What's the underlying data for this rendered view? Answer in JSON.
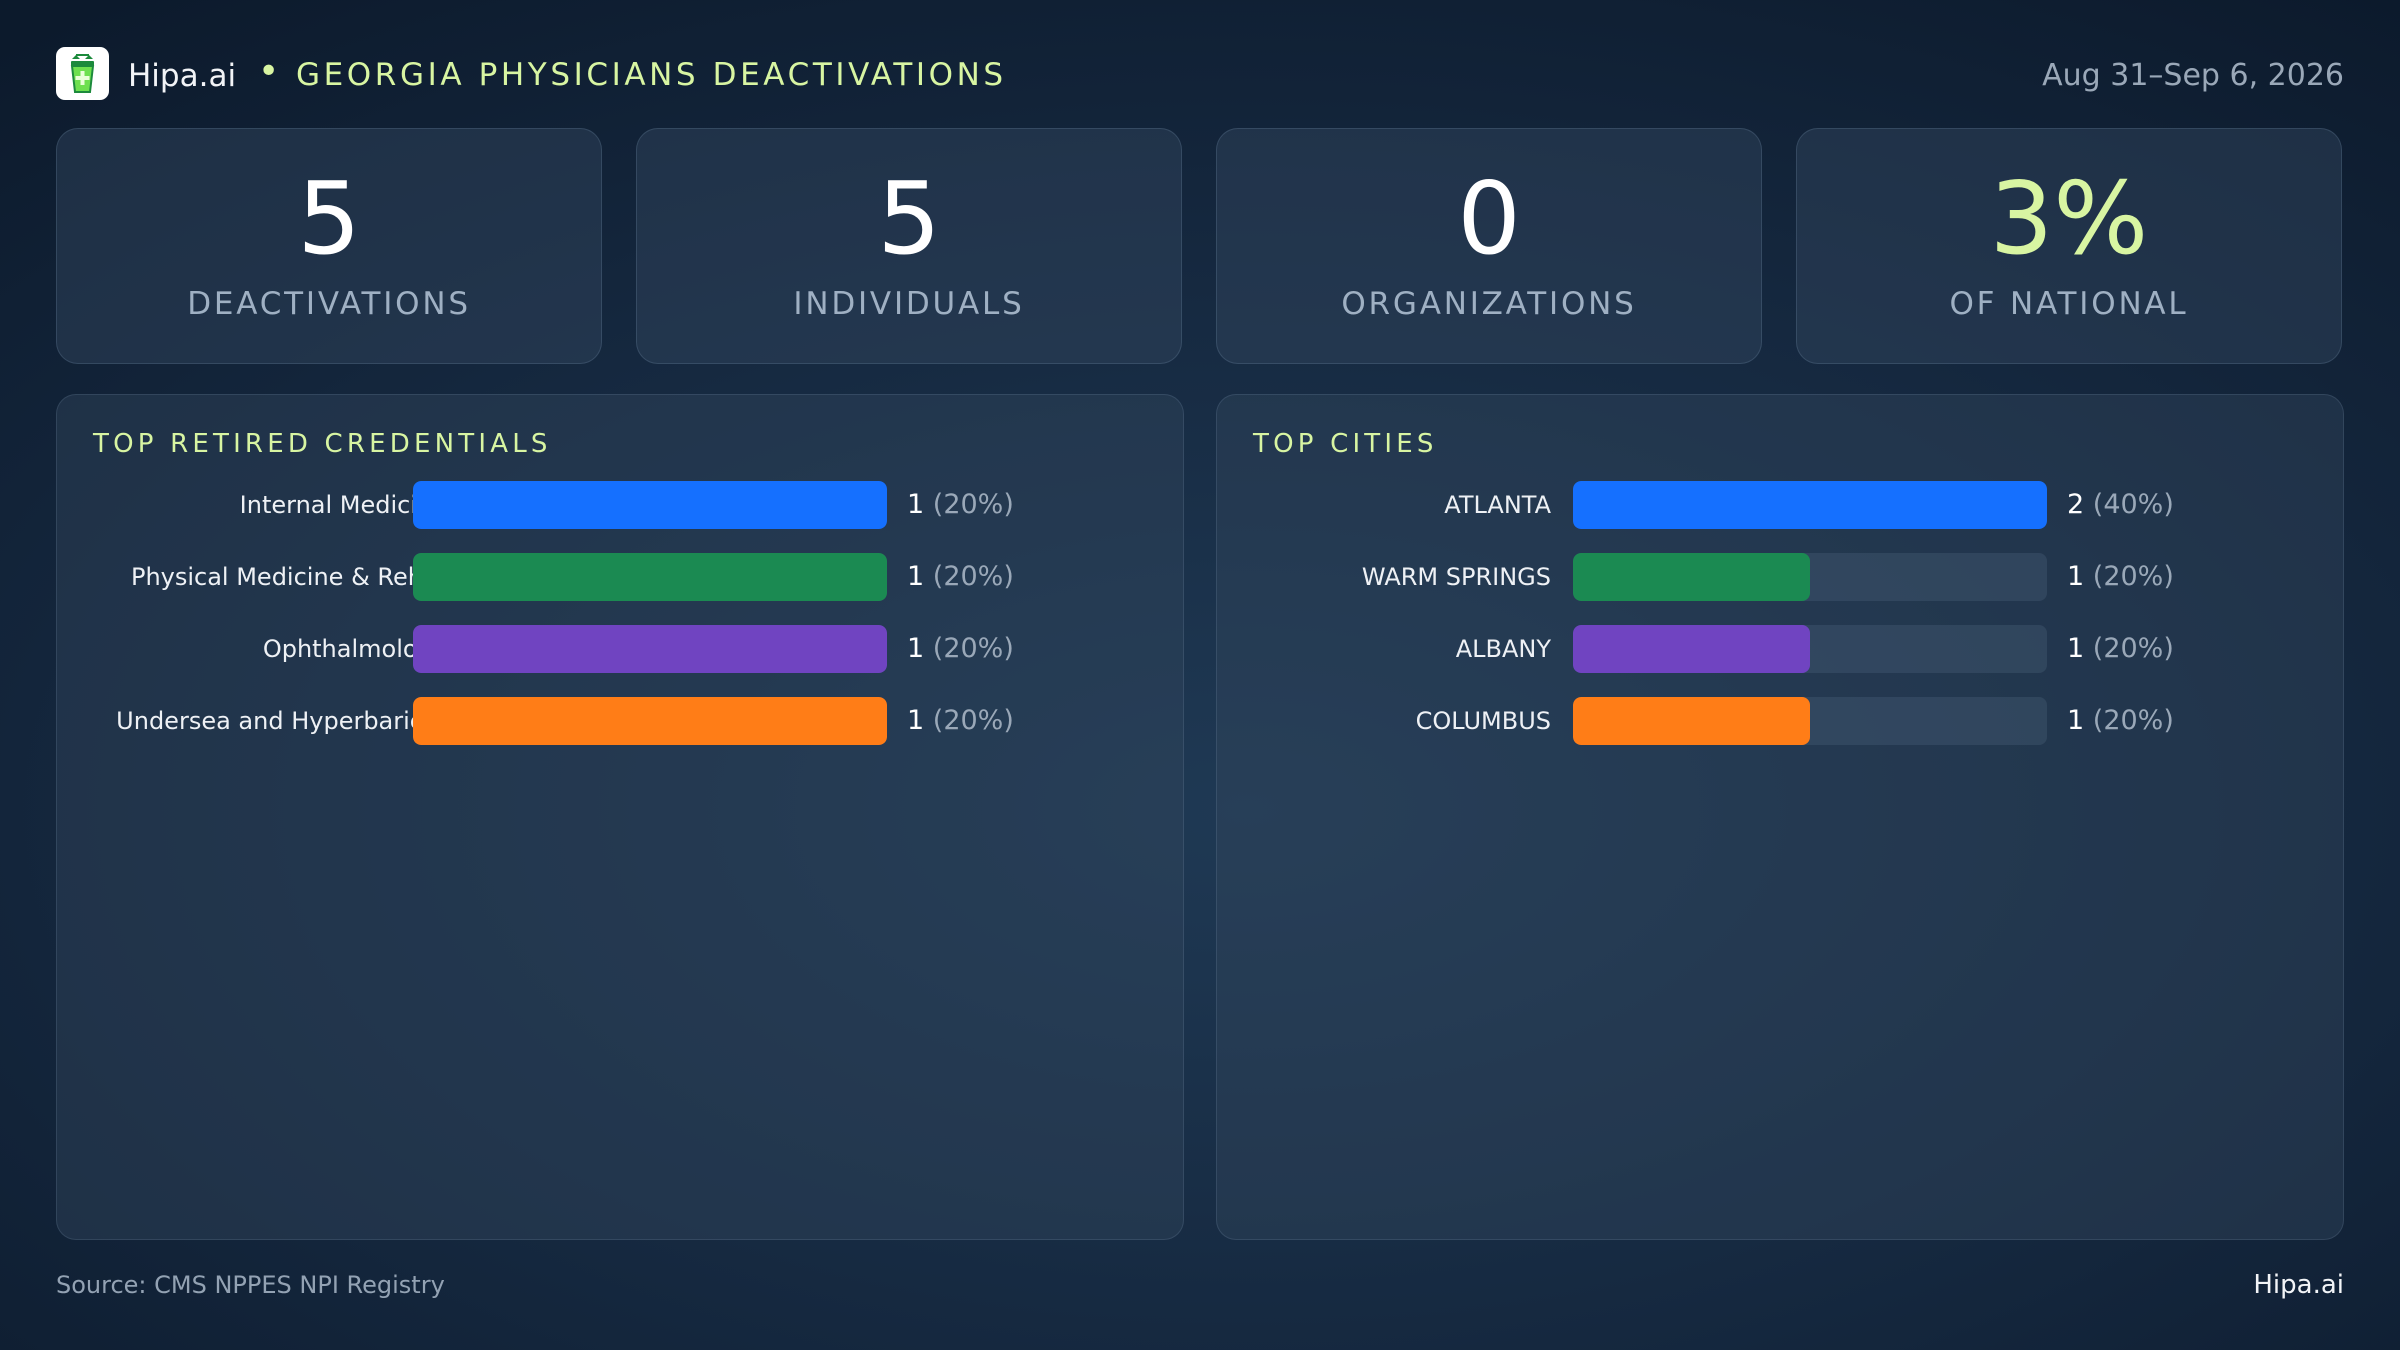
{
  "header": {
    "brand": "Hipa.ai",
    "separator": "•",
    "title": "GEORGIA PHYSICIANS DEACTIVATIONS",
    "date_range": "Aug 31–Sep 6, 2026",
    "logo_icon": "pharmacy-cup-icon"
  },
  "kpis": [
    {
      "value": "5",
      "label": "DEACTIVATIONS"
    },
    {
      "value": "5",
      "label": "INDIVIDUALS"
    },
    {
      "value": "0",
      "label": "ORGANIZATIONS"
    },
    {
      "value": "3%",
      "label": "OF NATIONAL"
    }
  ],
  "colors": {
    "accent": "#d8f5a2",
    "series": [
      "#1570ff",
      "#1b8a52",
      "#7044c1",
      "#ff7d17"
    ]
  },
  "chart_data": [
    {
      "type": "bar",
      "orientation": "horizontal",
      "title": "TOP RETIRED CREDENTIALS",
      "categories": [
        "Internal Medicine",
        "Physical Medicine & Reh…",
        "Ophthalmology",
        "Undersea and Hyperbaric…"
      ],
      "values": [
        1,
        1,
        1,
        1
      ],
      "value_labels": [
        "1",
        "1",
        "1",
        "1"
      ],
      "percent_labels": [
        "(20%)",
        "(20%)",
        "(20%)",
        "(20%)"
      ],
      "xlim": [
        0,
        1
      ],
      "grid": false
    },
    {
      "type": "bar",
      "orientation": "horizontal",
      "title": "TOP CITIES",
      "categories": [
        "ATLANTA",
        "WARM SPRINGS",
        "ALBANY",
        "COLUMBUS"
      ],
      "values": [
        2,
        1,
        1,
        1
      ],
      "value_labels": [
        "2",
        "1",
        "1",
        "1"
      ],
      "percent_labels": [
        "(40%)",
        "(20%)",
        "(20%)",
        "(20%)"
      ],
      "xlim": [
        0,
        2
      ],
      "grid": false
    }
  ],
  "footer": {
    "source": "Source: CMS NPPES NPI Registry",
    "brand": "Hipa.ai"
  }
}
